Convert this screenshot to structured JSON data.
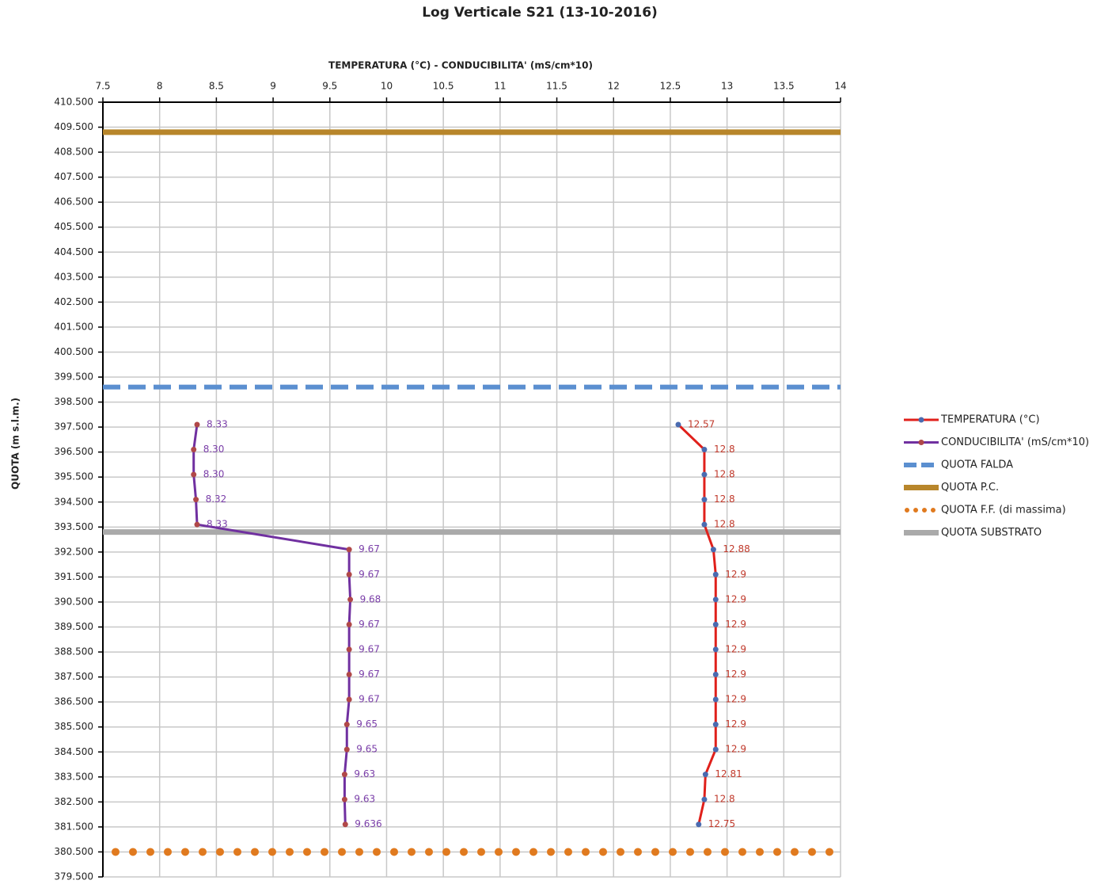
{
  "chart_data": {
    "type": "profile",
    "title": "Log Verticale S21 (13-10-2016)",
    "x_label": "TEMPERATURA (°C) - CONDUCIBILITA' (mS/cm*10)",
    "y_label": "QUOTA (m s.l.m.)",
    "xlim": [
      7.5,
      14
    ],
    "xticks": [
      7.5,
      8,
      8.5,
      9,
      9.5,
      10,
      10.5,
      11,
      11.5,
      12,
      12.5,
      13,
      13.5,
      14
    ],
    "ylim": [
      379.5,
      410.5
    ],
    "yticks": [
      {
        "value": 410.5,
        "label": "410.500"
      },
      {
        "value": 409.5,
        "label": "409.500"
      },
      {
        "value": 408.5,
        "label": "408.500"
      },
      {
        "value": 407.5,
        "label": "407.500"
      },
      {
        "value": 406.5,
        "label": "406.500"
      },
      {
        "value": 405.5,
        "label": "405.500"
      },
      {
        "value": 404.5,
        "label": "404.500"
      },
      {
        "value": 403.5,
        "label": "403.500"
      },
      {
        "value": 402.5,
        "label": "402.500"
      },
      {
        "value": 401.5,
        "label": "401.500"
      },
      {
        "value": 400.5,
        "label": "400.500"
      },
      {
        "value": 399.5,
        "label": "399.500"
      },
      {
        "value": 398.5,
        "label": "398.500"
      },
      {
        "value": 397.5,
        "label": "397.500"
      },
      {
        "value": 396.5,
        "label": "396.500"
      },
      {
        "value": 395.5,
        "label": "395.500"
      },
      {
        "value": 394.5,
        "label": "394.500"
      },
      {
        "value": 393.5,
        "label": "393.500"
      },
      {
        "value": 392.5,
        "label": "392.500"
      },
      {
        "value": 391.5,
        "label": "391.500"
      },
      {
        "value": 390.5,
        "label": "390.500"
      },
      {
        "value": 389.5,
        "label": "389.500"
      },
      {
        "value": 388.5,
        "label": "388.500"
      },
      {
        "value": 387.5,
        "label": "387.500"
      },
      {
        "value": 386.5,
        "label": "386.500"
      },
      {
        "value": 385.5,
        "label": "385.500"
      },
      {
        "value": 384.5,
        "label": "384.500"
      },
      {
        "value": 383.5,
        "label": "383.500"
      },
      {
        "value": 382.5,
        "label": "382.500"
      },
      {
        "value": 381.5,
        "label": "381.500"
      },
      {
        "value": 380.5,
        "label": "380.500"
      },
      {
        "value": 379.5,
        "label": "379.500"
      }
    ],
    "grid": true,
    "y": [
      397.6,
      396.6,
      395.6,
      394.6,
      393.6,
      392.6,
      391.6,
      390.6,
      389.6,
      388.6,
      387.6,
      386.6,
      385.6,
      384.6,
      383.6,
      382.6,
      381.6
    ],
    "series": [
      {
        "name": "TEMPERATURA (°C)",
        "color": "#e0201b",
        "marker_color": "#4a6bb0",
        "label_color": "#c0392b",
        "values": [
          12.57,
          12.8,
          12.8,
          12.8,
          12.8,
          12.88,
          12.9,
          12.9,
          12.9,
          12.9,
          12.9,
          12.9,
          12.9,
          12.9,
          12.81,
          12.8,
          12.75
        ]
      },
      {
        "name": "CONDUCIBILITA' (mS/cm*10)",
        "color": "#7030a0",
        "marker_color": "#b04848",
        "label_color": "#7a3ea8",
        "values": [
          8.33,
          8.3,
          8.3,
          8.32,
          8.33,
          9.67,
          9.67,
          9.68,
          9.67,
          9.67,
          9.67,
          9.67,
          9.65,
          9.65,
          9.63,
          9.63,
          9.636
        ],
        "value_labels": [
          "8.33",
          "8.30",
          "8.30",
          "8.32",
          "8.33",
          "9.67",
          "9.67",
          "9.68",
          "9.67",
          "9.67",
          "9.67",
          "9.67",
          "9.65",
          "9.65",
          "9.63",
          "9.63",
          "9.636"
        ]
      }
    ],
    "reference_lines": [
      {
        "name": "QUOTA FALDA",
        "color": "#5b8fd0",
        "value": 399.1,
        "style": "dashed"
      },
      {
        "name": "QUOTA P.C.",
        "color": "#b8862b",
        "value": 409.3,
        "style": "solid"
      },
      {
        "name": "QUOTA F.F. (di massima)",
        "color": "#e07a1f",
        "value": 380.5,
        "style": "dotted"
      },
      {
        "name": "QUOTA SUBSTRATO",
        "color": "#aaaaaa",
        "value": 393.3,
        "style": "solid"
      }
    ]
  }
}
